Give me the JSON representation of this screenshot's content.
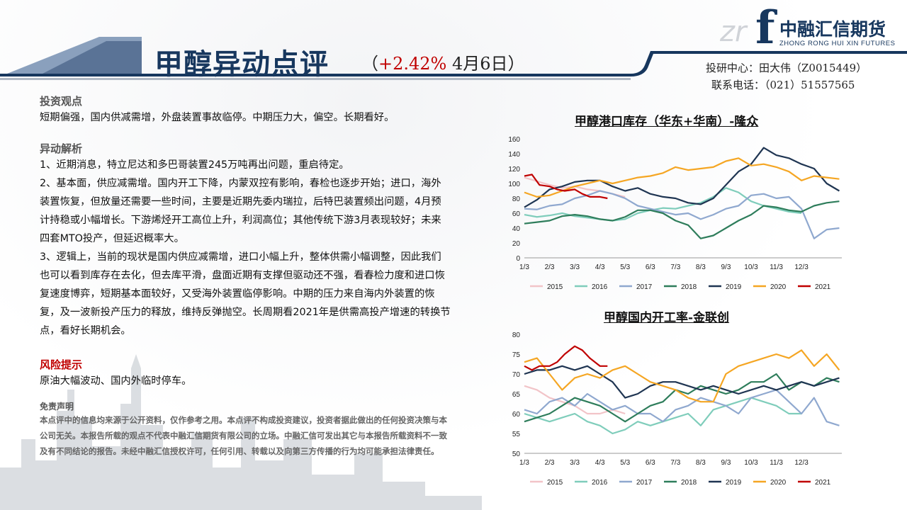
{
  "header": {
    "title": "甲醇异动点评",
    "subtitle_open": "（",
    "change": "+2.42%",
    "date": " 4月6日）"
  },
  "logo": {
    "mark": "f",
    "mark_prefix": "zr",
    "name_cn": "中融汇信期货",
    "name_en": "ZHONG RONG HUI XIN FUTURES"
  },
  "contact": {
    "analyst": "投研中心：田大伟（Z0015449）",
    "phone": "联系电话：（021）51557565"
  },
  "content": {
    "view_title": "投资观点",
    "view_text": "短期偏强，国内供减需增，外盘装置事故临停。中期压力大，偏空。长期看好。",
    "analysis_title": "异动解析",
    "analysis_1": "1、近期消息，特立尼达和多巴哥装置245万吨再出问题，重启待定。",
    "analysis_2": "2、基本面，供应减需增。国内开工下降，内蒙双控有影响，春检也逐步开始；进口，海外装置恢复，但放量还需要一些时间，主要是近期先委内瑞拉，后特巴装置频出问题，4月预计持稳或小幅增长。下游烯烃开工高位上升，利润高位；其他传统下游3月表现较好；未来四套MTO投产，但延迟概率大。",
    "analysis_3": "3、逻辑上，当前的现状是国内供应减需增，进口小幅上升，整体供需小幅调整，因此我们也可以看到库存在去化，但去库平滑，盘面近期有支撑但驱动还不强，看春检力度和进口恢复速度博弈，短期基本面较好，又受海外装置临停影响。中期的压力来自海内外装置的恢复，及一波新投产压力的释放，维持反弹抛空。长周期看2021年是供需高投产增速的转换节点，看好长期机会。",
    "risk_title": "风险提示",
    "risk_text": "原油大幅波动、国内外临时停车。",
    "disclaimer_title": "免责声明",
    "disclaimer_text": "本点评中的信息均来源于公开资料，仅作参考之用。本点评不构成投资建议，投资者据此做出的任何投资决策与本公司无关。本报告所载的观点不代表中融汇信期货有限公司的立场。中融汇信可发出其它与本报告所载资料不一致及有不同结论的报告。未经中融汇信授权许可，任何引用、转载以及向第三方传播的行为均可能承担法律责任。"
  },
  "chart_data": [
    {
      "type": "line",
      "title": "甲醇港口库存（华东+华南）-隆众",
      "x_ticks": [
        "1/3",
        "2/3",
        "3/3",
        "4/3",
        "5/3",
        "6/3",
        "7/3",
        "8/3",
        "9/3",
        "10/3",
        "11/3",
        "12/3"
      ],
      "ylim": [
        0,
        160
      ],
      "y_ticks": [
        0,
        20,
        40,
        60,
        80,
        100,
        120,
        140,
        160
      ],
      "legend_position": "bottom",
      "colors": {
        "2015": "#f2c4c8",
        "2016": "#7fcdbb",
        "2017": "#8fa8cf",
        "2018": "#2e7d5b",
        "2019": "#1f3552",
        "2020": "#f5a623",
        "2021": "#c00000"
      },
      "series": [
        {
          "name": "2015",
          "x": [
            0,
            0.5,
            1,
            1.5,
            2,
            2.5,
            3,
            3.5,
            4
          ],
          "y": [
            108,
            103,
            98,
            94,
            96,
            92,
            90,
            86,
            82
          ]
        },
        {
          "name": "2016",
          "x": [
            0,
            0.5,
            1,
            1.5,
            2,
            2.5,
            3,
            3.5,
            4,
            4.5,
            5,
            5.5,
            6,
            6.5,
            7,
            7.5,
            8,
            8.5,
            9,
            9.5,
            10,
            10.5,
            11
          ],
          "y": [
            58,
            55,
            57,
            60,
            56,
            54,
            52,
            50,
            52,
            60,
            64,
            67,
            66,
            70,
            74,
            82,
            94,
            88,
            76,
            70,
            66,
            62,
            60
          ]
        },
        {
          "name": "2017",
          "x": [
            0,
            0.5,
            1,
            1.5,
            2,
            2.5,
            3,
            3.5,
            4,
            4.5,
            5,
            5.5,
            6,
            6.5,
            7,
            7.5,
            8,
            8.5,
            9,
            9.5,
            10,
            10.5,
            11,
            11.5,
            12,
            12.5
          ],
          "y": [
            66,
            65,
            70,
            72,
            80,
            84,
            90,
            86,
            80,
            70,
            66,
            62,
            58,
            60,
            52,
            58,
            66,
            70,
            84,
            86,
            80,
            82,
            66,
            26,
            38,
            40
          ]
        },
        {
          "name": "2018",
          "x": [
            0,
            0.5,
            1,
            1.5,
            2,
            2.5,
            3,
            3.5,
            4,
            4.5,
            5,
            5.5,
            6,
            6.5,
            7,
            7.5,
            8,
            8.5,
            9,
            9.5,
            10,
            10.5,
            11,
            11.5,
            12,
            12.5
          ],
          "y": [
            46,
            48,
            50,
            56,
            58,
            56,
            52,
            50,
            55,
            64,
            64,
            60,
            50,
            44,
            26,
            30,
            40,
            50,
            58,
            70,
            68,
            64,
            62,
            70,
            74,
            76
          ]
        },
        {
          "name": "2019",
          "x": [
            0,
            0.5,
            1,
            1.5,
            2,
            2.5,
            3,
            3.5,
            4,
            4.5,
            5,
            5.5,
            6,
            6.5,
            7,
            7.5,
            8,
            8.5,
            9,
            9.5,
            10,
            10.5,
            11,
            11.5,
            12,
            12.5
          ],
          "y": [
            68,
            78,
            92,
            96,
            102,
            104,
            104,
            96,
            90,
            94,
            86,
            82,
            80,
            74,
            72,
            80,
            98,
            116,
            126,
            148,
            138,
            134,
            126,
            120,
            100,
            90
          ]
        },
        {
          "name": "2020",
          "x": [
            0,
            0.5,
            1,
            1.5,
            2,
            2.5,
            3,
            3.5,
            4,
            4.5,
            5,
            5.5,
            6,
            6.5,
            7,
            7.5,
            8,
            8.5,
            9,
            9.5,
            10,
            10.5,
            11,
            11.5,
            12,
            12.5
          ],
          "y": [
            88,
            82,
            84,
            90,
            96,
            100,
            104,
            100,
            104,
            108,
            110,
            114,
            122,
            118,
            120,
            122,
            130,
            134,
            124,
            126,
            122,
            116,
            104,
            110,
            108,
            106
          ]
        },
        {
          "name": "2021",
          "x": [
            0,
            0.3,
            0.6,
            1,
            1.3,
            1.6,
            2,
            2.3,
            2.6,
            3,
            3.3
          ],
          "y": [
            110,
            112,
            98,
            96,
            92,
            90,
            92,
            86,
            82,
            82,
            80
          ]
        }
      ]
    },
    {
      "type": "line",
      "title": "甲醇国内开工率-金联创",
      "x_ticks": [
        "1/3",
        "2/3",
        "3/3",
        "4/3",
        "5/3",
        "6/3",
        "7/3",
        "8/3",
        "9/3",
        "10/3",
        "11/3",
        "12/3"
      ],
      "ylim": [
        50,
        80
      ],
      "y_ticks": [
        50,
        55,
        60,
        65,
        70,
        75,
        80
      ],
      "legend_position": "bottom",
      "colors": {
        "2015": "#f2c4c8",
        "2016": "#7fcdbb",
        "2017": "#8fa8cf",
        "2018": "#2e7d5b",
        "2019": "#1f3552",
        "2020": "#f5a623",
        "2021": "#c00000"
      },
      "series": [
        {
          "name": "2015",
          "x": [
            0,
            0.5,
            1,
            1.5,
            2,
            2.5,
            3,
            3.5,
            4
          ],
          "y": [
            67,
            66,
            64,
            63,
            62,
            60,
            60,
            61,
            60
          ]
        },
        {
          "name": "2016",
          "x": [
            0,
            0.5,
            1,
            1.5,
            2,
            2.5,
            3,
            3.5,
            4,
            4.5,
            5,
            5.5,
            6,
            6.5,
            7,
            7.5,
            8,
            8.5,
            9,
            9.5,
            10,
            10.5,
            11
          ],
          "y": [
            60,
            59,
            58,
            59,
            60,
            58,
            57,
            55,
            56,
            58,
            57,
            58,
            59,
            60,
            57,
            61,
            62,
            63,
            64,
            63,
            62,
            60,
            60
          ]
        },
        {
          "name": "2017",
          "x": [
            0,
            0.5,
            1,
            1.5,
            2,
            2.5,
            3,
            3.5,
            4,
            4.5,
            5,
            5.5,
            6,
            6.5,
            7,
            7.5,
            8,
            8.5,
            9,
            9.5,
            10,
            10.5,
            11,
            11.5,
            12,
            12.5
          ],
          "y": [
            61,
            60,
            63,
            64,
            62,
            65,
            63,
            61,
            62,
            60,
            60,
            58,
            61,
            62,
            64,
            63,
            62,
            60,
            64,
            65,
            66,
            63,
            60,
            64,
            58,
            57
          ]
        },
        {
          "name": "2018",
          "x": [
            0,
            0.5,
            1,
            1.5,
            2,
            2.5,
            3,
            3.5,
            4,
            4.5,
            5,
            5.5,
            6,
            6.5,
            7,
            7.5,
            8,
            8.5,
            9,
            9.5,
            10,
            10.5,
            11,
            11.5,
            12,
            12.5
          ],
          "y": [
            58,
            59,
            60,
            62,
            64,
            63,
            62,
            60,
            58,
            60,
            62,
            63,
            66,
            65,
            67,
            66,
            65,
            66,
            68,
            68,
            70,
            66,
            68,
            67,
            69,
            68
          ]
        },
        {
          "name": "2019",
          "x": [
            0,
            0.5,
            1,
            1.5,
            2,
            2.5,
            3,
            3.5,
            4,
            4.5,
            5,
            5.5,
            6,
            6.5,
            7,
            7.5,
            8,
            8.5,
            9,
            9.5,
            10,
            10.5,
            11,
            11.5,
            12,
            12.5
          ],
          "y": [
            70,
            71,
            71,
            72,
            71,
            72,
            70,
            68,
            64,
            65,
            67,
            68,
            68,
            67,
            66,
            67,
            66,
            65,
            66,
            67,
            66,
            67,
            68,
            67,
            68,
            69
          ]
        },
        {
          "name": "2020",
          "x": [
            0,
            0.5,
            1,
            1.5,
            2,
            2.5,
            3,
            3.5,
            4,
            4.5,
            5,
            5.5,
            6,
            6.5,
            7,
            7.5,
            8,
            8.5,
            9,
            9.5,
            10,
            10.5,
            11,
            11.5,
            12,
            12.5
          ],
          "y": [
            73,
            74,
            70,
            66,
            69,
            70,
            69,
            71,
            72,
            70,
            68,
            67,
            66,
            64,
            63,
            63,
            70,
            72,
            73,
            74,
            75,
            74,
            76,
            72,
            75,
            71
          ]
        },
        {
          "name": "2021",
          "x": [
            0,
            0.3,
            0.6,
            1,
            1.3,
            1.6,
            2,
            2.3,
            2.6,
            3,
            3.3
          ],
          "y": [
            72,
            71,
            72,
            72,
            73,
            75,
            77,
            76,
            74,
            72,
            72
          ]
        }
      ]
    }
  ]
}
